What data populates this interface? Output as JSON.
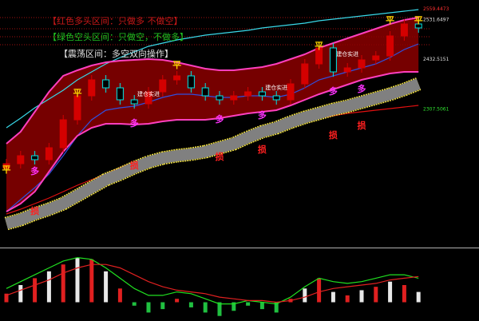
{
  "chart_data": [
    {
      "type": "candlestick",
      "ylim": [
        1962,
        2582
      ],
      "up_color": "#d40000",
      "down_color": "#00e5e5",
      "open": [
        2160,
        2172,
        2192,
        2182,
        2212,
        2282,
        2342,
        2382,
        2362,
        2332,
        2322,
        2352,
        2382,
        2392,
        2362,
        2342,
        2332,
        2342,
        2352,
        2342,
        2332,
        2372,
        2422,
        2462,
        2402,
        2412,
        2432,
        2442,
        2492,
        2522
      ],
      "high": [
        2184,
        2204,
        2204,
        2224,
        2294,
        2354,
        2394,
        2394,
        2374,
        2344,
        2364,
        2394,
        2404,
        2404,
        2374,
        2354,
        2354,
        2364,
        2364,
        2354,
        2384,
        2434,
        2474,
        2474,
        2424,
        2444,
        2454,
        2504,
        2534,
        2534
      ],
      "low": [
        2148,
        2160,
        2170,
        2170,
        2200,
        2270,
        2330,
        2350,
        2320,
        2310,
        2310,
        2340,
        2370,
        2350,
        2330,
        2320,
        2320,
        2330,
        2330,
        2320,
        2320,
        2360,
        2410,
        2390,
        2390,
        2400,
        2420,
        2430,
        2480,
        2500
      ],
      "close": [
        2172,
        2192,
        2182,
        2212,
        2282,
        2342,
        2382,
        2362,
        2332,
        2322,
        2352,
        2382,
        2392,
        2362,
        2342,
        2332,
        2342,
        2352,
        2342,
        2332,
        2372,
        2422,
        2462,
        2402,
        2412,
        2432,
        2442,
        2492,
        2522,
        2512
      ],
      "band": {
        "fill": "#8b0000",
        "color": "#ff3fbf",
        "upper": [
          2222,
          2252,
          2302,
          2352,
          2392,
          2406,
          2418,
          2426,
          2430,
          2432,
          2434,
          2432,
          2426,
          2418,
          2410,
          2406,
          2406,
          2410,
          2414,
          2422,
          2434,
          2446,
          2462,
          2474,
          2486,
          2498,
          2510,
          2522,
          2532,
          2538
        ],
        "lower": [
          2052,
          2072,
          2102,
          2152,
          2202,
          2242,
          2262,
          2272,
          2272,
          2270,
          2272,
          2278,
          2282,
          2282,
          2282,
          2286,
          2292,
          2298,
          2302,
          2306,
          2318,
          2332,
          2346,
          2358,
          2370,
          2382,
          2390,
          2398,
          2402,
          2402
        ]
      },
      "lines": [
        {
          "color": "#38d8e8",
          "width": 1.2,
          "values": [
            2262,
            2286,
            2312,
            2334,
            2356,
            2382,
            2402,
            2422,
            2438,
            2452,
            2466,
            2474,
            2482,
            2488,
            2494,
            2498,
            2502,
            2506,
            2512,
            2516,
            2520,
            2524,
            2530,
            2534,
            2538,
            2542,
            2546,
            2550,
            2554,
            2558
          ]
        },
        {
          "color": "#3050e0",
          "width": 1.2,
          "values": [
            2052,
            2082,
            2112,
            2146,
            2192,
            2242,
            2282,
            2306,
            2312,
            2316,
            2326,
            2338,
            2346,
            2346,
            2342,
            2338,
            2338,
            2342,
            2342,
            2338,
            2346,
            2362,
            2382,
            2392,
            2402,
            2412,
            2422,
            2438,
            2458,
            2472
          ]
        },
        {
          "color": "#e01010",
          "width": 1.2,
          "values": [
            2046,
            2058,
            2072,
            2086,
            2102,
            2118,
            2132,
            2146,
            2162,
            2176,
            2186,
            2192,
            2198,
            2206,
            2214,
            2222,
            2232,
            2242,
            2252,
            2262,
            2270,
            2278,
            2286,
            2292,
            2298,
            2302,
            2306,
            2310,
            2314,
            2318
          ]
        },
        {
          "color": "#808080",
          "width": 14,
          "edge": "#f0e040",
          "values": [
            2022,
            2032,
            2046,
            2058,
            2072,
            2092,
            2112,
            2132,
            2146,
            2162,
            2176,
            2186,
            2192,
            2196,
            2202,
            2212,
            2222,
            2238,
            2252,
            2262,
            2276,
            2288,
            2298,
            2308,
            2316,
            2326,
            2336,
            2346,
            2358,
            2372
          ]
        }
      ],
      "notes": [
        {
          "text": "【红色多头区间：只做多 不做空】",
          "color": "#c81818"
        },
        {
          "text": "【绿色空头区间：只做空，不做多】",
          "color": "#20c020"
        },
        {
          "text": "【震荡区间：多空双向操作】",
          "color": "#e0e0e0"
        }
      ],
      "price_labels": [
        {
          "value": 2559.4473,
          "color": "#ff3030"
        },
        {
          "value": 2531.6497,
          "color": "#e0e0e0"
        },
        {
          "value": 2432.5151,
          "color": "#e0e0e0"
        },
        {
          "value": 2307.5061,
          "color": "#30e030"
        }
      ],
      "annotations": [
        {
          "text": "平",
          "index": 0,
          "price": 2156,
          "color": "#ffd700"
        },
        {
          "text": "平",
          "index": 5,
          "price": 2348,
          "color": "#ffd700"
        },
        {
          "text": "平",
          "index": 12,
          "price": 2418,
          "color": "#ffd700"
        },
        {
          "text": "平",
          "index": 22,
          "price": 2466,
          "color": "#ffd700"
        },
        {
          "text": "平",
          "index": 27,
          "price": 2530,
          "color": "#ffd700"
        },
        {
          "text": "平",
          "index": 29,
          "price": 2530,
          "color": "#ffd700"
        },
        {
          "text": "多",
          "index": 2,
          "price": 2152,
          "color": "#ff33ff"
        },
        {
          "text": "多",
          "index": 9,
          "price": 2272,
          "color": "#ff33ff"
        },
        {
          "text": "多",
          "index": 15,
          "price": 2282,
          "color": "#ff33ff"
        },
        {
          "text": "多",
          "index": 18,
          "price": 2292,
          "color": "#ff33ff"
        },
        {
          "text": "多",
          "index": 23,
          "price": 2352,
          "color": "#ff33ff"
        },
        {
          "text": "多",
          "index": 25,
          "price": 2358,
          "color": "#ff33ff"
        },
        {
          "text": "损",
          "index": 2,
          "price": 2052,
          "color": "#ff2020"
        },
        {
          "text": "损",
          "index": 9,
          "price": 2166,
          "color": "#ff2020"
        },
        {
          "text": "损",
          "index": 15,
          "price": 2188,
          "color": "#ff2020"
        },
        {
          "text": "损",
          "index": 18,
          "price": 2206,
          "color": "#ff2020"
        },
        {
          "text": "损",
          "index": 23,
          "price": 2242,
          "color": "#ff2020"
        },
        {
          "text": "损",
          "index": 25,
          "price": 2266,
          "color": "#ff2020"
        },
        {
          "text": "建仓实进",
          "index": 10,
          "price": 2346,
          "color": "#ffffff",
          "small": true
        },
        {
          "text": "建仓实进",
          "index": 19,
          "price": 2362,
          "color": "#ffffff",
          "small": true
        },
        {
          "text": "建仓实进",
          "index": 24,
          "price": 2446,
          "color": "#ffffff",
          "small": true
        }
      ]
    },
    {
      "type": "macd",
      "ylim": [
        -10,
        30
      ],
      "up_color": "#e02020",
      "alt_color": "#e8e8e8",
      "down_color": "#20c040",
      "histogram": [
        5,
        10,
        14,
        18,
        22,
        26,
        25,
        18,
        8,
        -2,
        -6,
        -4,
        2,
        -3,
        -6,
        -8,
        -5,
        -2,
        -4,
        -6,
        2,
        8,
        14,
        6,
        4,
        7,
        9,
        12,
        10,
        6
      ],
      "dif": [
        8,
        12,
        16,
        20,
        24,
        26,
        25,
        20,
        14,
        8,
        4,
        4,
        6,
        5,
        2,
        -1,
        -1,
        1,
        0,
        -1,
        3,
        9,
        14,
        12,
        11,
        12,
        14,
        16,
        16,
        14
      ],
      "dea": [
        4,
        7,
        10,
        13,
        17,
        20,
        22,
        22,
        20,
        16,
        12,
        9,
        7,
        6,
        5,
        3,
        2,
        1,
        1,
        0,
        1,
        3,
        6,
        8,
        9,
        10,
        11,
        13,
        14,
        15
      ],
      "dif_color": "#20e020",
      "dea_color": "#e02020"
    }
  ]
}
